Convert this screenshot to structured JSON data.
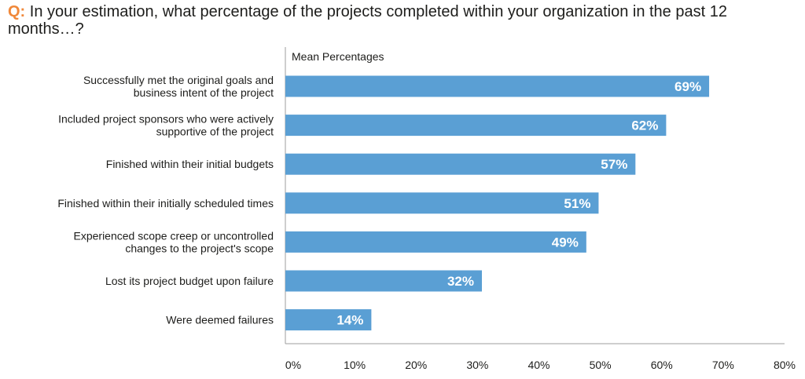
{
  "title_prefix": "Q:",
  "title": "In your estimation, what percentage of the projects completed within your organization in the past 12 months…?",
  "chart_data": {
    "type": "bar",
    "orientation": "horizontal",
    "series_label": "Mean Percentages",
    "categories": [
      "Successfully met the original goals and|business intent of the project",
      "Included project sponsors who were actively|supportive of the project",
      "Finished within their initial budgets",
      "Finished within their initially scheduled times",
      "Experienced scope creep or uncontrolled|changes to the project's scope",
      "Lost its project budget upon failure",
      "Were deemed failures"
    ],
    "values": [
      69,
      62,
      57,
      51,
      49,
      32,
      14
    ],
    "value_labels": [
      "69%",
      "62%",
      "57%",
      "51%",
      "49%",
      "32%",
      "14%"
    ],
    "xlim": [
      0,
      80
    ],
    "xticks": [
      0,
      10,
      20,
      30,
      40,
      50,
      60,
      70,
      80
    ],
    "xtick_labels": [
      "0%",
      "10%",
      "20%",
      "30%",
      "40%",
      "50%",
      "60%",
      "70%",
      "80%"
    ],
    "grid": false,
    "colors": {
      "bar": "#5a9fd4",
      "title_accent": "#f0883a",
      "axis": "#9d9d9d"
    }
  }
}
